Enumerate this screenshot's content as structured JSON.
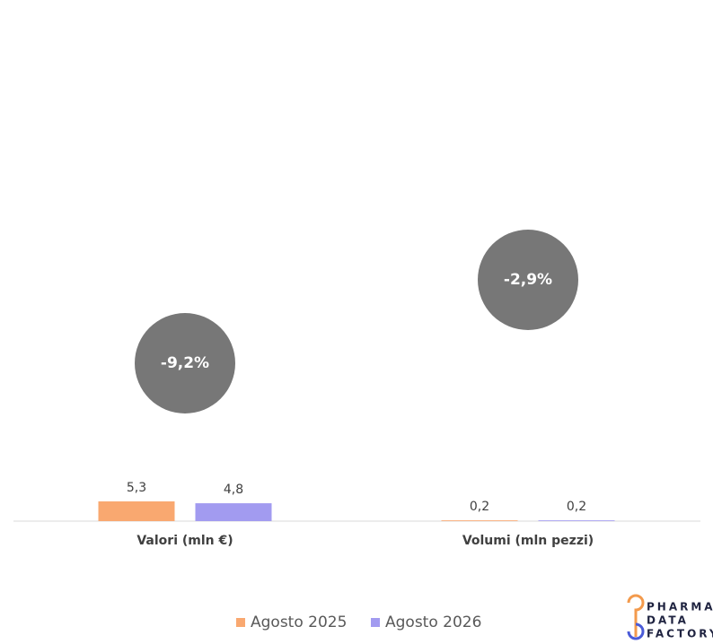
{
  "chart_data": {
    "type": "bar",
    "categories": [
      "Valori (mln €)",
      "Volumi (mln pezzi)"
    ],
    "series": [
      {
        "name": "Agosto 2025",
        "color": "#f9a870",
        "values": [
          5.3,
          0.2
        ],
        "value_labels": [
          "5,3",
          "0,2"
        ]
      },
      {
        "name": "Agosto 2026",
        "color": "#a29bf0",
        "values": [
          4.8,
          0.2
        ],
        "value_labels": [
          "4,8",
          "0,2"
        ]
      }
    ],
    "annotations": [
      "-9,2%",
      "-2,9%"
    ],
    "annotation_color": "#777777",
    "legend": "bottom"
  },
  "logo": [
    "PHARMA",
    "DATA",
    "FACTORY"
  ]
}
